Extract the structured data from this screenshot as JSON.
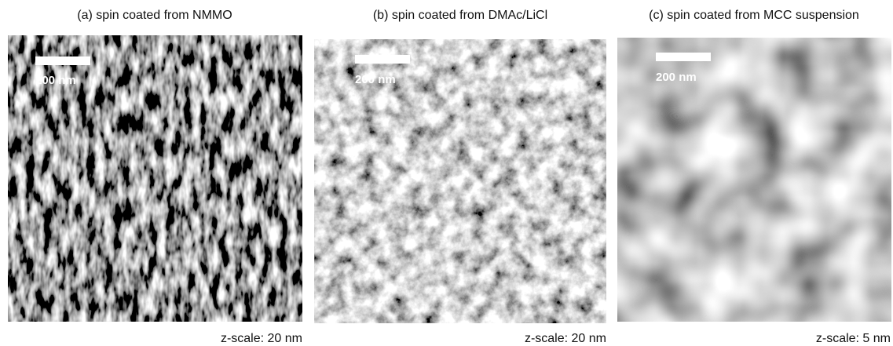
{
  "panels": [
    {
      "title": "(a) spin coated from NMMO",
      "scale_bar_label": "200 nm",
      "z_scale": "z-scale: 20 nm"
    },
    {
      "title": "(b) spin coated from DMAc/LiCl",
      "scale_bar_label": "200 nm",
      "z_scale": "z-scale: 20 nm"
    },
    {
      "title": "(c) spin coated from MCC suspension",
      "scale_bar_label": "200 nm",
      "z_scale": "z-scale: 5 nm"
    }
  ]
}
